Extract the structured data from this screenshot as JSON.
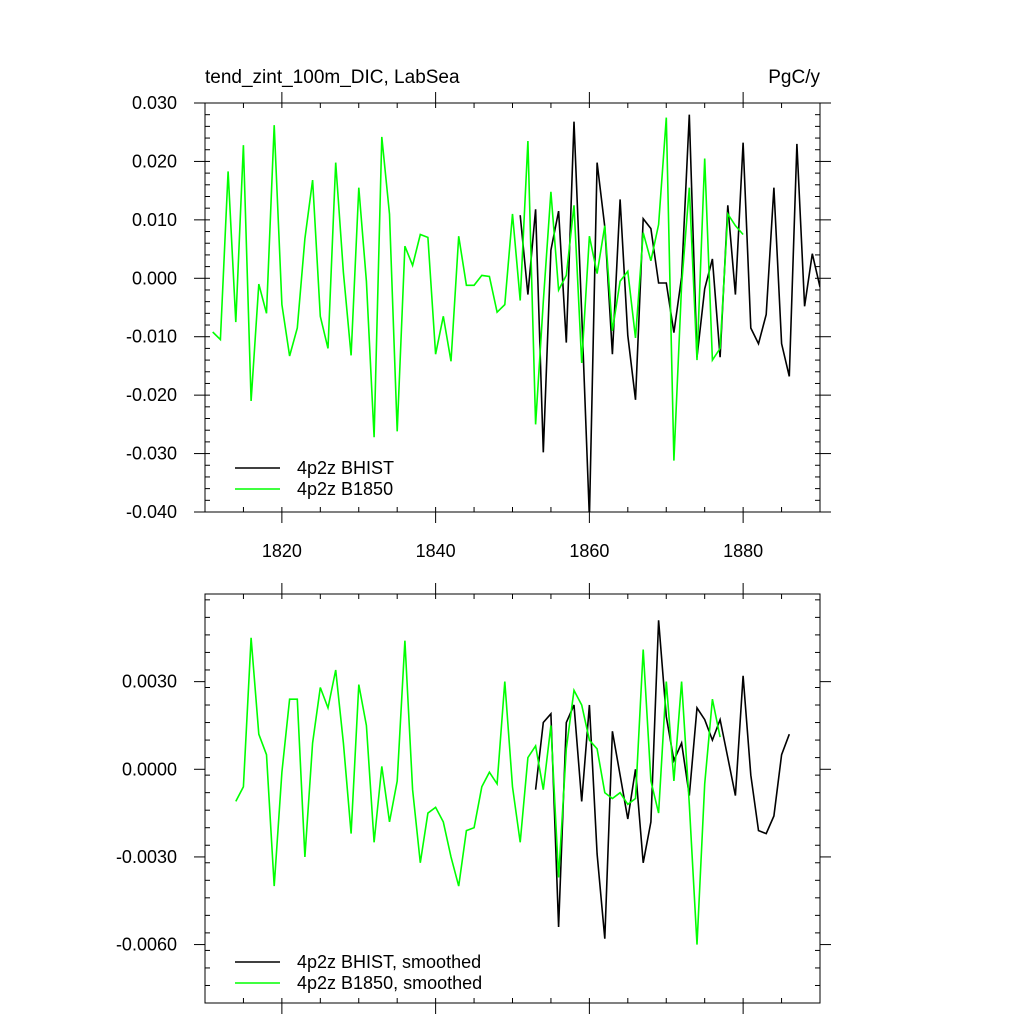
{
  "chart_data": [
    {
      "type": "line",
      "title": "tend_zint_100m_DIC, LabSea",
      "units": "PgC/y",
      "xlim": [
        1810,
        1890
      ],
      "ylim": [
        -0.04,
        0.03
      ],
      "x_ticks": [
        1820,
        1840,
        1860,
        1880
      ],
      "y_ticks": [
        -0.04,
        -0.03,
        -0.02,
        -0.01,
        0.0,
        0.01,
        0.02,
        0.03
      ],
      "y_tick_labels": [
        "-0.040",
        "-0.030",
        "-0.020",
        "-0.010",
        "0.000",
        "0.010",
        "0.020",
        "0.030"
      ],
      "legend_position": "bottom-left",
      "series": [
        {
          "name": "4p2z BHIST",
          "color": "#000000",
          "x": [
            1851,
            1852,
            1853,
            1854,
            1855,
            1856,
            1857,
            1858,
            1859,
            1860,
            1861,
            1862,
            1863,
            1864,
            1865,
            1866,
            1867,
            1868,
            1869,
            1870,
            1871,
            1872,
            1873,
            1874,
            1875,
            1876,
            1877,
            1878,
            1879,
            1880,
            1881,
            1882,
            1883,
            1884,
            1885,
            1886,
            1887,
            1888,
            1889,
            1890
          ],
          "values": [
            0.0108,
            -0.0028,
            0.0118,
            -0.0298,
            0.0048,
            0.0115,
            -0.011,
            0.0268,
            -0.006,
            -0.041,
            0.0198,
            0.0088,
            -0.013,
            0.0135,
            -0.0098,
            -0.0208,
            0.0102,
            0.0085,
            -0.0008,
            -0.0008,
            -0.0093,
            0.0002,
            0.028,
            -0.0135,
            -0.0018,
            0.0033,
            -0.0135,
            0.0125,
            -0.0028,
            0.0232,
            -0.0085,
            -0.0112,
            -0.0062,
            0.0155,
            -0.0112,
            -0.0168,
            0.023,
            -0.0048,
            0.0042,
            -0.0015
          ]
        },
        {
          "name": "4p2z B1850",
          "color": "#00ff00",
          "x": [
            1811,
            1812,
            1813,
            1814,
            1815,
            1816,
            1817,
            1818,
            1819,
            1820,
            1821,
            1822,
            1823,
            1824,
            1825,
            1826,
            1827,
            1828,
            1829,
            1830,
            1831,
            1832,
            1833,
            1834,
            1835,
            1836,
            1837,
            1838,
            1839,
            1840,
            1841,
            1842,
            1843,
            1844,
            1845,
            1846,
            1847,
            1848,
            1849,
            1850,
            1851,
            1852,
            1853,
            1854,
            1855,
            1856,
            1857,
            1858,
            1859,
            1860,
            1861,
            1862,
            1863,
            1864,
            1865,
            1866,
            1867,
            1868,
            1869,
            1870,
            1871,
            1872,
            1873,
            1874,
            1875,
            1876,
            1877,
            1878,
            1879,
            1880
          ],
          "values": [
            -0.0092,
            -0.0105,
            0.0183,
            -0.0075,
            0.0228,
            -0.021,
            -0.001,
            -0.006,
            0.0262,
            -0.0045,
            -0.0133,
            -0.0085,
            0.0068,
            0.0168,
            -0.0065,
            -0.012,
            0.0198,
            0.001,
            -0.0132,
            0.0155,
            -0.0005,
            -0.0272,
            0.0242,
            0.011,
            -0.0262,
            0.0055,
            0.0022,
            0.0075,
            0.007,
            -0.013,
            -0.0065,
            -0.0142,
            0.0072,
            -0.0012,
            -0.0012,
            0.0005,
            0.0003,
            -0.0058,
            -0.0045,
            0.011,
            -0.0038,
            0.0235,
            -0.025,
            -0.004,
            0.0148,
            -0.002,
            0.0005,
            0.0125,
            -0.0145,
            0.0072,
            0.0008,
            0.009,
            -0.009,
            -0.0005,
            0.0012,
            -0.0102,
            0.0078,
            0.003,
            0.0092,
            0.0275,
            -0.0312,
            -0.0012,
            0.0155,
            -0.014,
            0.0205,
            -0.014,
            -0.012,
            0.011,
            0.009,
            0.0075
          ]
        }
      ]
    },
    {
      "type": "line",
      "title": "",
      "xlim": [
        1810,
        1890
      ],
      "ylim": [
        -0.008,
        0.006
      ],
      "x_ticks": [
        1820,
        1840,
        1860,
        1880
      ],
      "y_ticks": [
        -0.006,
        -0.003,
        0.0,
        0.003
      ],
      "y_tick_labels": [
        "-0.0060",
        "-0.0030",
        "0.0000",
        "0.0030"
      ],
      "legend_position": "bottom-left",
      "series": [
        {
          "name": "4p2z BHIST, smoothed",
          "color": "#000000",
          "x": [
            1853,
            1854,
            1855,
            1856,
            1857,
            1858,
            1859,
            1860,
            1861,
            1862,
            1863,
            1864,
            1865,
            1866,
            1867,
            1868,
            1869,
            1870,
            1871,
            1872,
            1873,
            1874,
            1875,
            1876,
            1877,
            1878,
            1879,
            1880,
            1881,
            1882,
            1883,
            1884,
            1885,
            1886
          ],
          "values": [
            -0.0007,
            0.0016,
            0.0019,
            -0.0054,
            0.0016,
            0.0022,
            -0.0011,
            0.0022,
            -0.0029,
            -0.0058,
            0.0013,
            -0.0002,
            -0.0017,
            0.0,
            -0.0032,
            -0.0018,
            0.0051,
            0.0018,
            0.0003,
            0.0009,
            -0.0009,
            0.0021,
            0.0017,
            0.001,
            0.0017,
            0.0004,
            -0.0009,
            0.0032,
            -0.0002,
            -0.0021,
            -0.0022,
            -0.0016,
            0.0005,
            0.0012
          ]
        },
        {
          "name": "4p2z B1850, smoothed",
          "color": "#00ff00",
          "x": [
            1814,
            1815,
            1816,
            1817,
            1818,
            1819,
            1820,
            1821,
            1822,
            1823,
            1824,
            1825,
            1826,
            1827,
            1828,
            1829,
            1830,
            1831,
            1832,
            1833,
            1834,
            1835,
            1836,
            1837,
            1838,
            1839,
            1840,
            1841,
            1842,
            1843,
            1844,
            1845,
            1846,
            1847,
            1848,
            1849,
            1850,
            1851,
            1852,
            1853,
            1854,
            1855,
            1856,
            1857,
            1858,
            1859,
            1860,
            1861,
            1862,
            1863,
            1864,
            1865,
            1866,
            1867,
            1868,
            1869,
            1870,
            1871,
            1872,
            1873,
            1874,
            1875,
            1876,
            1877
          ],
          "values": [
            -0.0011,
            -0.0006,
            0.0045,
            0.0012,
            0.0005,
            -0.004,
            -0.0001,
            0.0024,
            0.0024,
            -0.003,
            0.0009,
            0.0028,
            0.0021,
            0.0034,
            0.0009,
            -0.0022,
            0.0029,
            0.0015,
            -0.0025,
            0.0001,
            -0.0018,
            -0.0004,
            0.0044,
            -0.0007,
            -0.0032,
            -0.0015,
            -0.0013,
            -0.0018,
            -0.003,
            -0.004,
            -0.0021,
            -0.002,
            -0.0006,
            -0.0001,
            -0.0005,
            0.003,
            -0.0006,
            -0.0025,
            0.0004,
            0.0008,
            -0.0007,
            0.0015,
            -0.0037,
            0.0007,
            0.0027,
            0.0022,
            0.001,
            0.0007,
            -0.0008,
            -0.001,
            -0.0008,
            -0.0012,
            -0.001,
            0.0041,
            -0.0004,
            -0.0015,
            0.003,
            -0.0004,
            0.003,
            -0.0012,
            -0.006,
            -0.0005,
            0.0024,
            0.0011
          ]
        }
      ]
    }
  ]
}
